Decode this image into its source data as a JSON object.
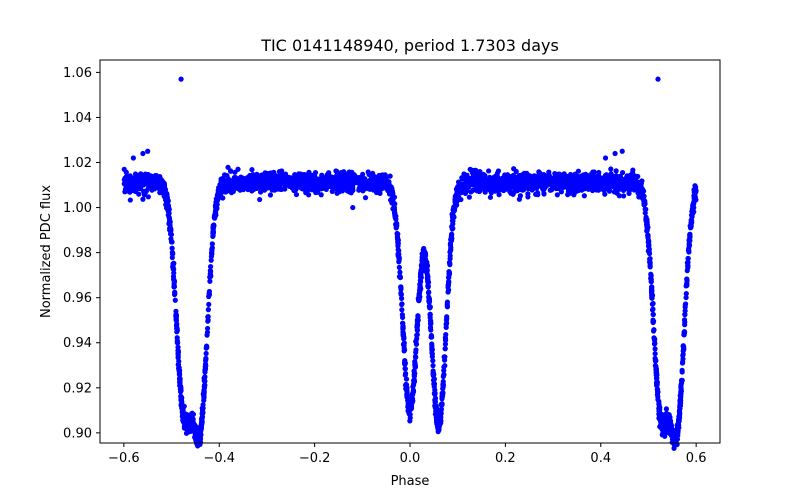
{
  "chart_data": {
    "type": "scatter",
    "title": "TIC 0141148940, period 1.7303 days",
    "xlabel": "Phase",
    "ylabel": "Normalized PDC flux",
    "xlim": [
      -0.65,
      0.65
    ],
    "ylim": [
      0.8955,
      1.0655
    ],
    "xticks": [
      -0.6,
      -0.4,
      -0.2,
      0.0,
      0.2,
      0.4,
      0.6
    ],
    "xtick_labels": [
      "−0.6",
      "−0.4",
      "−0.2",
      "0.0",
      "0.2",
      "0.4",
      "0.6"
    ],
    "yticks": [
      0.9,
      0.92,
      0.94,
      0.96,
      0.98,
      1.0,
      1.02,
      1.04,
      1.06
    ],
    "ytick_labels": [
      "0.90",
      "0.92",
      "0.94",
      "0.96",
      "0.98",
      "1.00",
      "1.02",
      "1.04",
      "1.06"
    ],
    "grid": false,
    "legend": "none",
    "marker_color": "#0000ff",
    "series": [
      {
        "x_range": [
          -0.6,
          0.6
        ],
        "baseline": 1.011,
        "eclipses": [
          {
            "center": -0.475,
            "depth_min": 0.915
          },
          {
            "center": -0.44,
            "depth_min": 0.907
          },
          {
            "center": 0.0,
            "depth_min": 0.91
          },
          {
            "center": 0.06,
            "depth_min": 0.903
          },
          {
            "center": 0.525,
            "depth_min": 0.915
          },
          {
            "center": 0.56,
            "depth_min": 0.907
          }
        ],
        "outliers": [
          {
            "x": -0.48,
            "y": 1.057
          },
          {
            "x": 0.52,
            "y": 1.057
          },
          {
            "x": -0.58,
            "y": 1.022
          },
          {
            "x": -0.56,
            "y": 1.024
          },
          {
            "x": -0.55,
            "y": 1.025
          },
          {
            "x": 0.41,
            "y": 1.022
          },
          {
            "x": 0.43,
            "y": 1.024
          },
          {
            "x": 0.445,
            "y": 1.025
          },
          {
            "x": -0.12,
            "y": 1.0
          },
          {
            "x": 0.595,
            "y": 1.0
          }
        ]
      }
    ]
  }
}
